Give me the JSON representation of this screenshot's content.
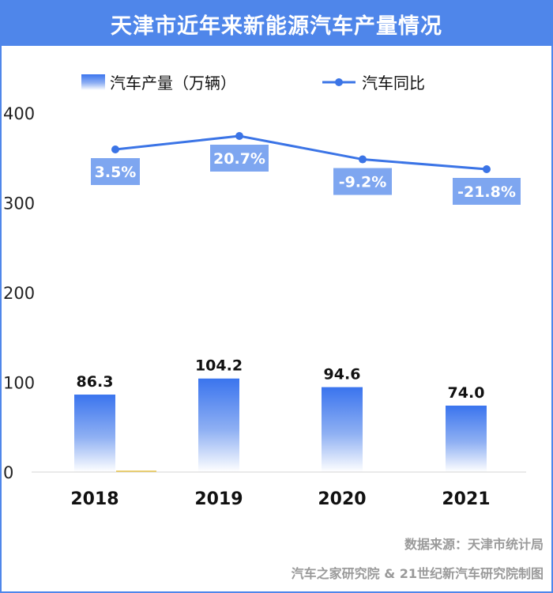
{
  "title": "天津市近年来新能源汽车产量情况",
  "source": "数据来源：天津市统计局",
  "credit": "汽车之家研究院 & 21世纪新汽车研究院制图",
  "colors": {
    "accent": "#4f86ea",
    "bar_top": "#3a74ee",
    "line": "#3b74e6",
    "label_box": "#7ea6f0",
    "axis_text": "#222222"
  },
  "chart_data": {
    "type": "bar+line",
    "categories": [
      "2018",
      "2019",
      "2020",
      "2021"
    ],
    "series": [
      {
        "name": "汽车产量（万辆）",
        "type": "bar",
        "values": [
          86.3,
          104.2,
          94.6,
          74.0
        ],
        "labels": [
          "86.3",
          "104.2",
          "94.6",
          "74.0"
        ]
      },
      {
        "name": "汽车同比",
        "type": "line",
        "values": [
          3.5,
          20.7,
          -9.2,
          -21.8
        ],
        "labels": [
          "3.5%",
          "20.7%",
          "-9.2%",
          "-21.8%"
        ]
      }
    ],
    "yticks": [
      "400",
      "300",
      "200",
      "100",
      "0"
    ],
    "ylim": [
      0,
      400
    ],
    "legend_position": "top",
    "grid": false
  }
}
